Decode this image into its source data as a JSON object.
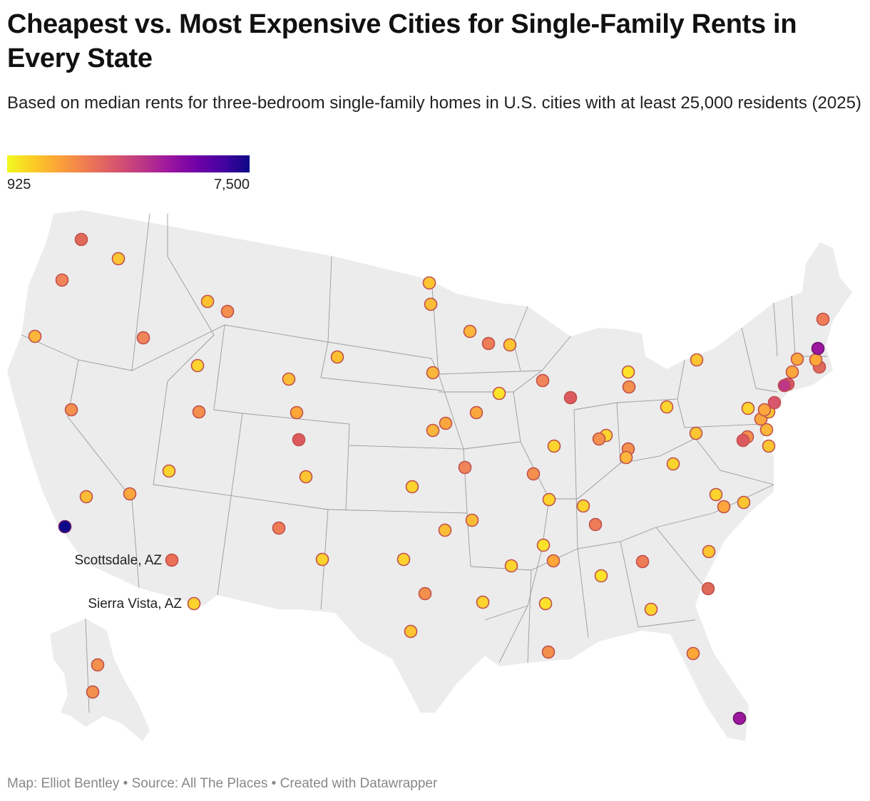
{
  "title": "Cheapest vs. Most Expensive Cities for Single-Family Rents in Every State",
  "subtitle": "Based on median rents for three-bedroom single-family homes in U.S. cities with at least 25,000 residents (2025)",
  "legend": {
    "min_label": "925",
    "max_label": "7,500",
    "min_value": 925,
    "max_value": 7500,
    "colors": [
      "#f0f921",
      "#fdca26",
      "#fb9f3a",
      "#ed7953",
      "#d8576b",
      "#bd3786",
      "#9c179e",
      "#7201a8",
      "#46039f",
      "#0d0887"
    ]
  },
  "map": {
    "land_color": "#ececec",
    "border_color": "#9a9a9a",
    "marker_stroke": "#c0504d",
    "callouts": [
      "Scottsdale, AZ",
      "Sierra Vista, AZ"
    ]
  },
  "footer": {
    "map_credit": "Map: Elliot Bentley",
    "source": "Source: All The Places",
    "tool": "Created with Datawrapper"
  }
}
